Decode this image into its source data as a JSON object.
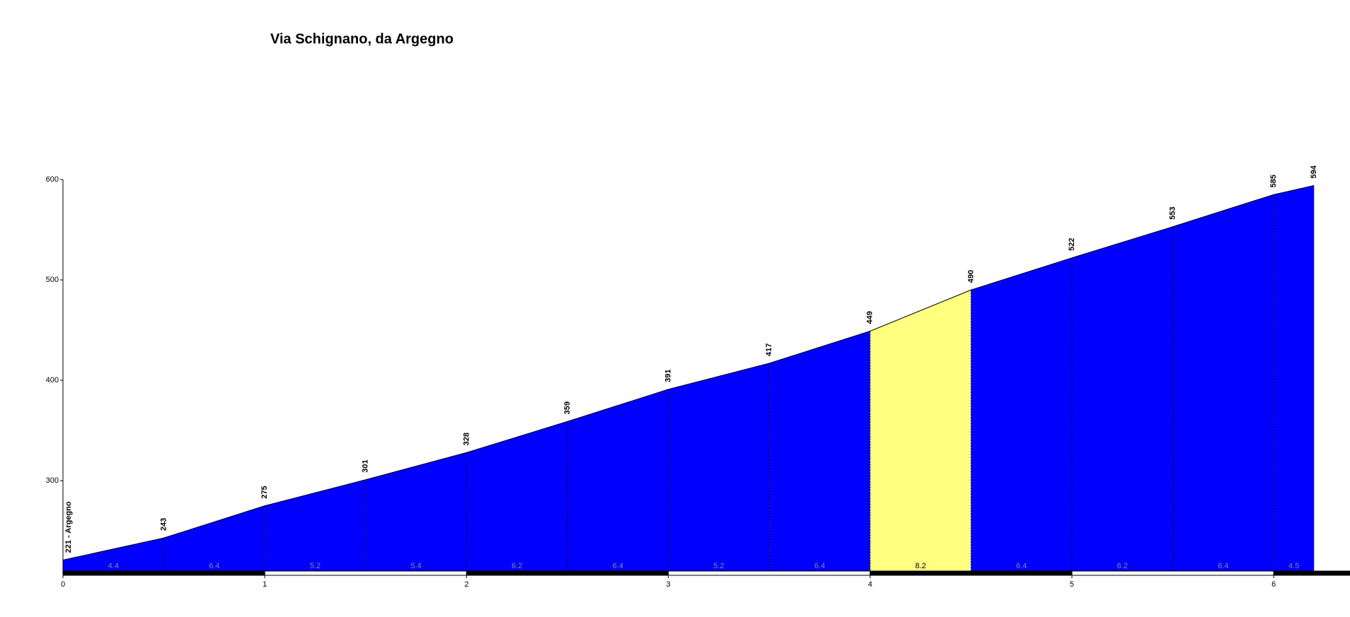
{
  "chart_data": {
    "type": "elevation-profile",
    "title": "Via Schignano, da Argegno",
    "x": [
      0,
      0.5,
      1,
      1.5,
      2,
      2.5,
      3,
      3.5,
      4,
      4.5,
      5,
      5.5,
      6,
      6.2
    ],
    "values": [
      221,
      243,
      275,
      301,
      328,
      359,
      391,
      417,
      449,
      490,
      522,
      553,
      585,
      594
    ],
    "value_labels": [
      "221 - Argegno",
      "243",
      "275",
      "301",
      "328",
      "359",
      "391",
      "417",
      "449",
      "490",
      "522",
      "553",
      "585",
      "594"
    ],
    "gradients": [
      4.4,
      6.4,
      5.2,
      5.4,
      6.2,
      6.4,
      5.2,
      6.4,
      8.2,
      6.4,
      6.2,
      6.4,
      4.5
    ],
    "segment_colors": [
      "#0000ff",
      "#0000ff",
      "#0000ff",
      "#0000ff",
      "#0000ff",
      "#0000ff",
      "#0000ff",
      "#0000ff",
      "#ffff80",
      "#0000ff",
      "#0000ff",
      "#0000ff",
      "#0000ff"
    ],
    "xlim": [
      0,
      6.35
    ],
    "ylim": [
      210,
      600
    ],
    "xticks": [
      0,
      1,
      2,
      3,
      4,
      5,
      6
    ],
    "yticks": [
      300,
      400,
      500,
      600
    ]
  }
}
